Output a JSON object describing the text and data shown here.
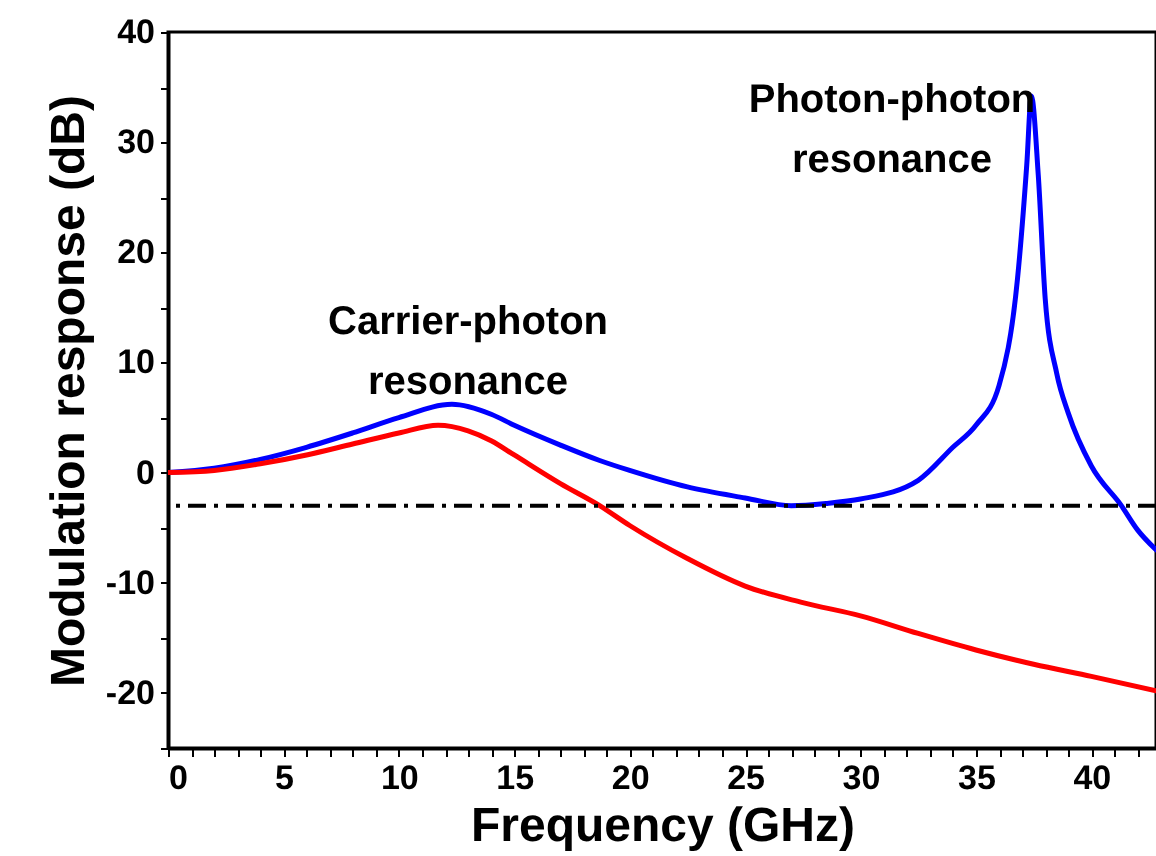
{
  "chart_data": {
    "type": "line",
    "xlabel": "Frequency (GHz)",
    "ylabel": "Modulation response (dB)",
    "xlim": [
      0,
      42.8
    ],
    "ylim": [
      -25,
      40
    ],
    "xticks": [
      0,
      {
        "value": 1,
        "label": null
      },
      {
        "value": 2,
        "label": null
      },
      {
        "value": 3,
        "label": null
      },
      {
        "value": 4,
        "label": null
      },
      5,
      {
        "value": 6,
        "label": null
      },
      {
        "value": 7,
        "label": null
      },
      {
        "value": 8,
        "label": null
      },
      {
        "value": 9,
        "label": null
      },
      10,
      {
        "value": 11,
        "label": null
      },
      {
        "value": 12,
        "label": null
      },
      {
        "value": 13,
        "label": null
      },
      {
        "value": 14,
        "label": null
      },
      15,
      {
        "value": 16,
        "label": null
      },
      {
        "value": 17,
        "label": null
      },
      {
        "value": 18,
        "label": null
      },
      {
        "value": 19,
        "label": null
      },
      20,
      {
        "value": 21,
        "label": null
      },
      {
        "value": 22,
        "label": null
      },
      {
        "value": 23,
        "label": null
      },
      {
        "value": 24,
        "label": null
      },
      25,
      {
        "value": 26,
        "label": null
      },
      {
        "value": 27,
        "label": null
      },
      {
        "value": 28,
        "label": null
      },
      {
        "value": 29,
        "label": null
      },
      30,
      {
        "value": 31,
        "label": null
      },
      {
        "value": 32,
        "label": null
      },
      {
        "value": 33,
        "label": null
      },
      {
        "value": 34,
        "label": null
      },
      35,
      {
        "value": 36,
        "label": null
      },
      {
        "value": 37,
        "label": null
      },
      {
        "value": 38,
        "label": null
      },
      {
        "value": 39,
        "label": null
      },
      40,
      {
        "value": 41,
        "label": null
      },
      {
        "value": 42,
        "label": null
      }
    ],
    "yticks": [
      {
        "value": -25,
        "label": null
      },
      -20,
      {
        "value": -15,
        "label": null
      },
      -10,
      {
        "value": -5,
        "label": null
      },
      0,
      {
        "value": 5,
        "label": null
      },
      10,
      {
        "value": 15,
        "label": null
      },
      20,
      {
        "value": 25,
        "label": null
      },
      30,
      {
        "value": 35,
        "label": null
      },
      40
    ],
    "grid": false,
    "marker": "none",
    "line_style": "solid",
    "series": [
      {
        "color": "#0000ff",
        "x": [
          0,
          2,
          4,
          6,
          8,
          10,
          12.3,
          14,
          15,
          17,
          18.7,
          20,
          22.5,
          25,
          27,
          28.5,
          30,
          32.5,
          34,
          35,
          36,
          36.8,
          37.2,
          37.4,
          37.7,
          38,
          38.5,
          39,
          40,
          41.3,
          42,
          42.8
        ],
        "values": [
          0,
          0.4,
          1.2,
          2.3,
          3.6,
          5.0,
          6.2,
          5.3,
          4.3,
          2.5,
          1.1,
          0.2,
          -1.3,
          -2.3,
          -3,
          -2.8,
          -2.4,
          -0.7,
          2.3,
          4.3,
          7.9,
          17.6,
          27.9,
          34.2,
          27,
          15.8,
          9,
          5.4,
          0.6,
          -3,
          -5.2,
          -7
        ]
      },
      {
        "color": "#ff0000",
        "x": [
          0,
          2,
          4,
          6,
          8,
          10,
          11.7,
          13,
          14,
          15,
          17,
          18.7,
          20,
          22.5,
          25,
          27.5,
          30,
          32.5,
          35,
          37.5,
          40,
          42.8
        ],
        "values": [
          0,
          0.2,
          0.8,
          1.6,
          2.6,
          3.6,
          4.3,
          3.8,
          2.9,
          1.6,
          -1.0,
          -3,
          -4.8,
          -7.8,
          -10.3,
          -11.8,
          -13.0,
          -14.6,
          -16.1,
          -17.4,
          -18.5,
          -19.8
        ]
      }
    ],
    "ref_lines": [
      {
        "axis": "y",
        "value": -3,
        "color": "#000000",
        "line_style": "dashdot"
      }
    ],
    "annotations": [
      "Carrier-photon resonance",
      "Photon-photon resonance"
    ]
  }
}
